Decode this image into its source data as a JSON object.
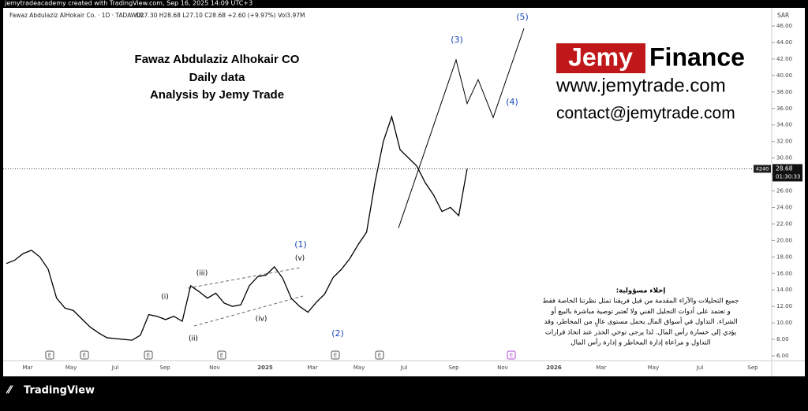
{
  "top_note": "jemytradeacademy created with TradingView.com, Sep 16, 2025 14:09 UTC+3",
  "header": {
    "symbol": "Fawaz Abdulaziz AlHokair Co. · 1D · TADAWUL",
    "ohlc": "O27.30 H28.68 L27.10 C28.68 +2.60 (+9.97%) Vol3.97M"
  },
  "brand": {
    "jemy": "Jemy",
    "finance": "Finance",
    "site": "www.jemytrade.com",
    "contact": "contact@jemytrade.com"
  },
  "footer": {
    "logo": "TradingView"
  },
  "chart_data": {
    "type": "line",
    "title": [
      "Fawaz Abdulaziz Alhokair CO",
      "Daily  data",
      "Analysis by Jemy Trade"
    ],
    "currency": "SAR",
    "last_price": "28.68",
    "countdown": "01:30:33",
    "volume_tag": "4240",
    "x_labels": [
      "Mar",
      "May",
      "Jul",
      "Sep",
      "Nov",
      "2025",
      "Mar",
      "May",
      "Jul",
      "Sep",
      "Nov",
      "2026",
      "Mar",
      "May",
      "Jul",
      "Sep"
    ],
    "ylim": [
      6,
      46
    ],
    "yticks": [
      {
        "value": 6,
        "label": "6.00"
      },
      {
        "value": 8,
        "label": "8.00"
      },
      {
        "value": 10,
        "label": "10.00"
      },
      {
        "value": 12,
        "label": "12.00"
      },
      {
        "value": 14,
        "label": "14.00"
      },
      {
        "value": 16,
        "label": "16.00"
      },
      {
        "value": 18,
        "label": "18.00"
      },
      {
        "value": 20,
        "label": "20.00"
      },
      {
        "value": 22,
        "label": "22.00"
      },
      {
        "value": 24,
        "label": "24.00"
      },
      {
        "value": 26,
        "label": "26.00"
      },
      {
        "value": 28,
        "label": "28.00"
      },
      {
        "value": 30,
        "label": "30.00"
      },
      {
        "value": 32,
        "label": "32.00"
      },
      {
        "value": 34,
        "label": "34.00"
      },
      {
        "value": 36,
        "label": "36.00"
      },
      {
        "value": 38,
        "label": "38.00"
      },
      {
        "value": 40,
        "label": "40.00"
      },
      {
        "value": 42,
        "label": "42.00"
      },
      {
        "value": 44,
        "label": "44.00"
      },
      {
        "value": 46,
        "label": "46.00"
      }
    ],
    "series": [
      {
        "name": "Price",
        "color": "#000000",
        "values": [
          17.2,
          17.6,
          18.4,
          18.8,
          18.0,
          16.5,
          13.0,
          11.8,
          11.5,
          10.5,
          9.5,
          8.8,
          8.2,
          8.1,
          8.0,
          7.9,
          8.5,
          11.0,
          10.8,
          10.4,
          10.8,
          10.2,
          14.5,
          13.8,
          13.0,
          13.6,
          12.4,
          12.0,
          12.2,
          14.5,
          15.6,
          15.8,
          16.8,
          15.4,
          13.0,
          12.0,
          11.3,
          12.5,
          13.5,
          15.5,
          16.5,
          17.8,
          19.5,
          21.0,
          27.0,
          32.0,
          35.0,
          31.0,
          30.0,
          29.0,
          27.0,
          25.5,
          23.5,
          24.0,
          23.0,
          28.68
        ]
      },
      {
        "name": "Projection",
        "color": "#000000",
        "values": [
          21.5,
          41.9,
          36.6,
          39.5,
          34.9,
          45.7
        ]
      }
    ],
    "waves": [
      "(5)",
      "(3)",
      "(4)",
      "(1)",
      "(2)",
      "(i)",
      "(ii)",
      "(iii)",
      "(iv)",
      "(v)"
    ],
    "events": [
      "E",
      "E",
      "E",
      "E",
      "E",
      "E",
      "E"
    ]
  },
  "disclaimer": [
    "إخلاء مسؤولية:",
    "جميع التحليلات والآراء المقدمة من قبل فريقنا تمثل نظرتنا الخاصة فقط",
    "و تعتمد على أدوات التحليل الفني ولا تُعتبر توصية مباشرة بالبيع أو",
    "الشراء. التداول في أسواق المال يحمل مستوى عالٍ من المخاطر، وقد",
    "يؤدي إلى خسارة رأس المال. لذا يرجى توخي الحذر عند اتخاذ قرارات",
    "التداول و مراعاة إدارة المخاطر و إدارة رأس المال"
  ]
}
